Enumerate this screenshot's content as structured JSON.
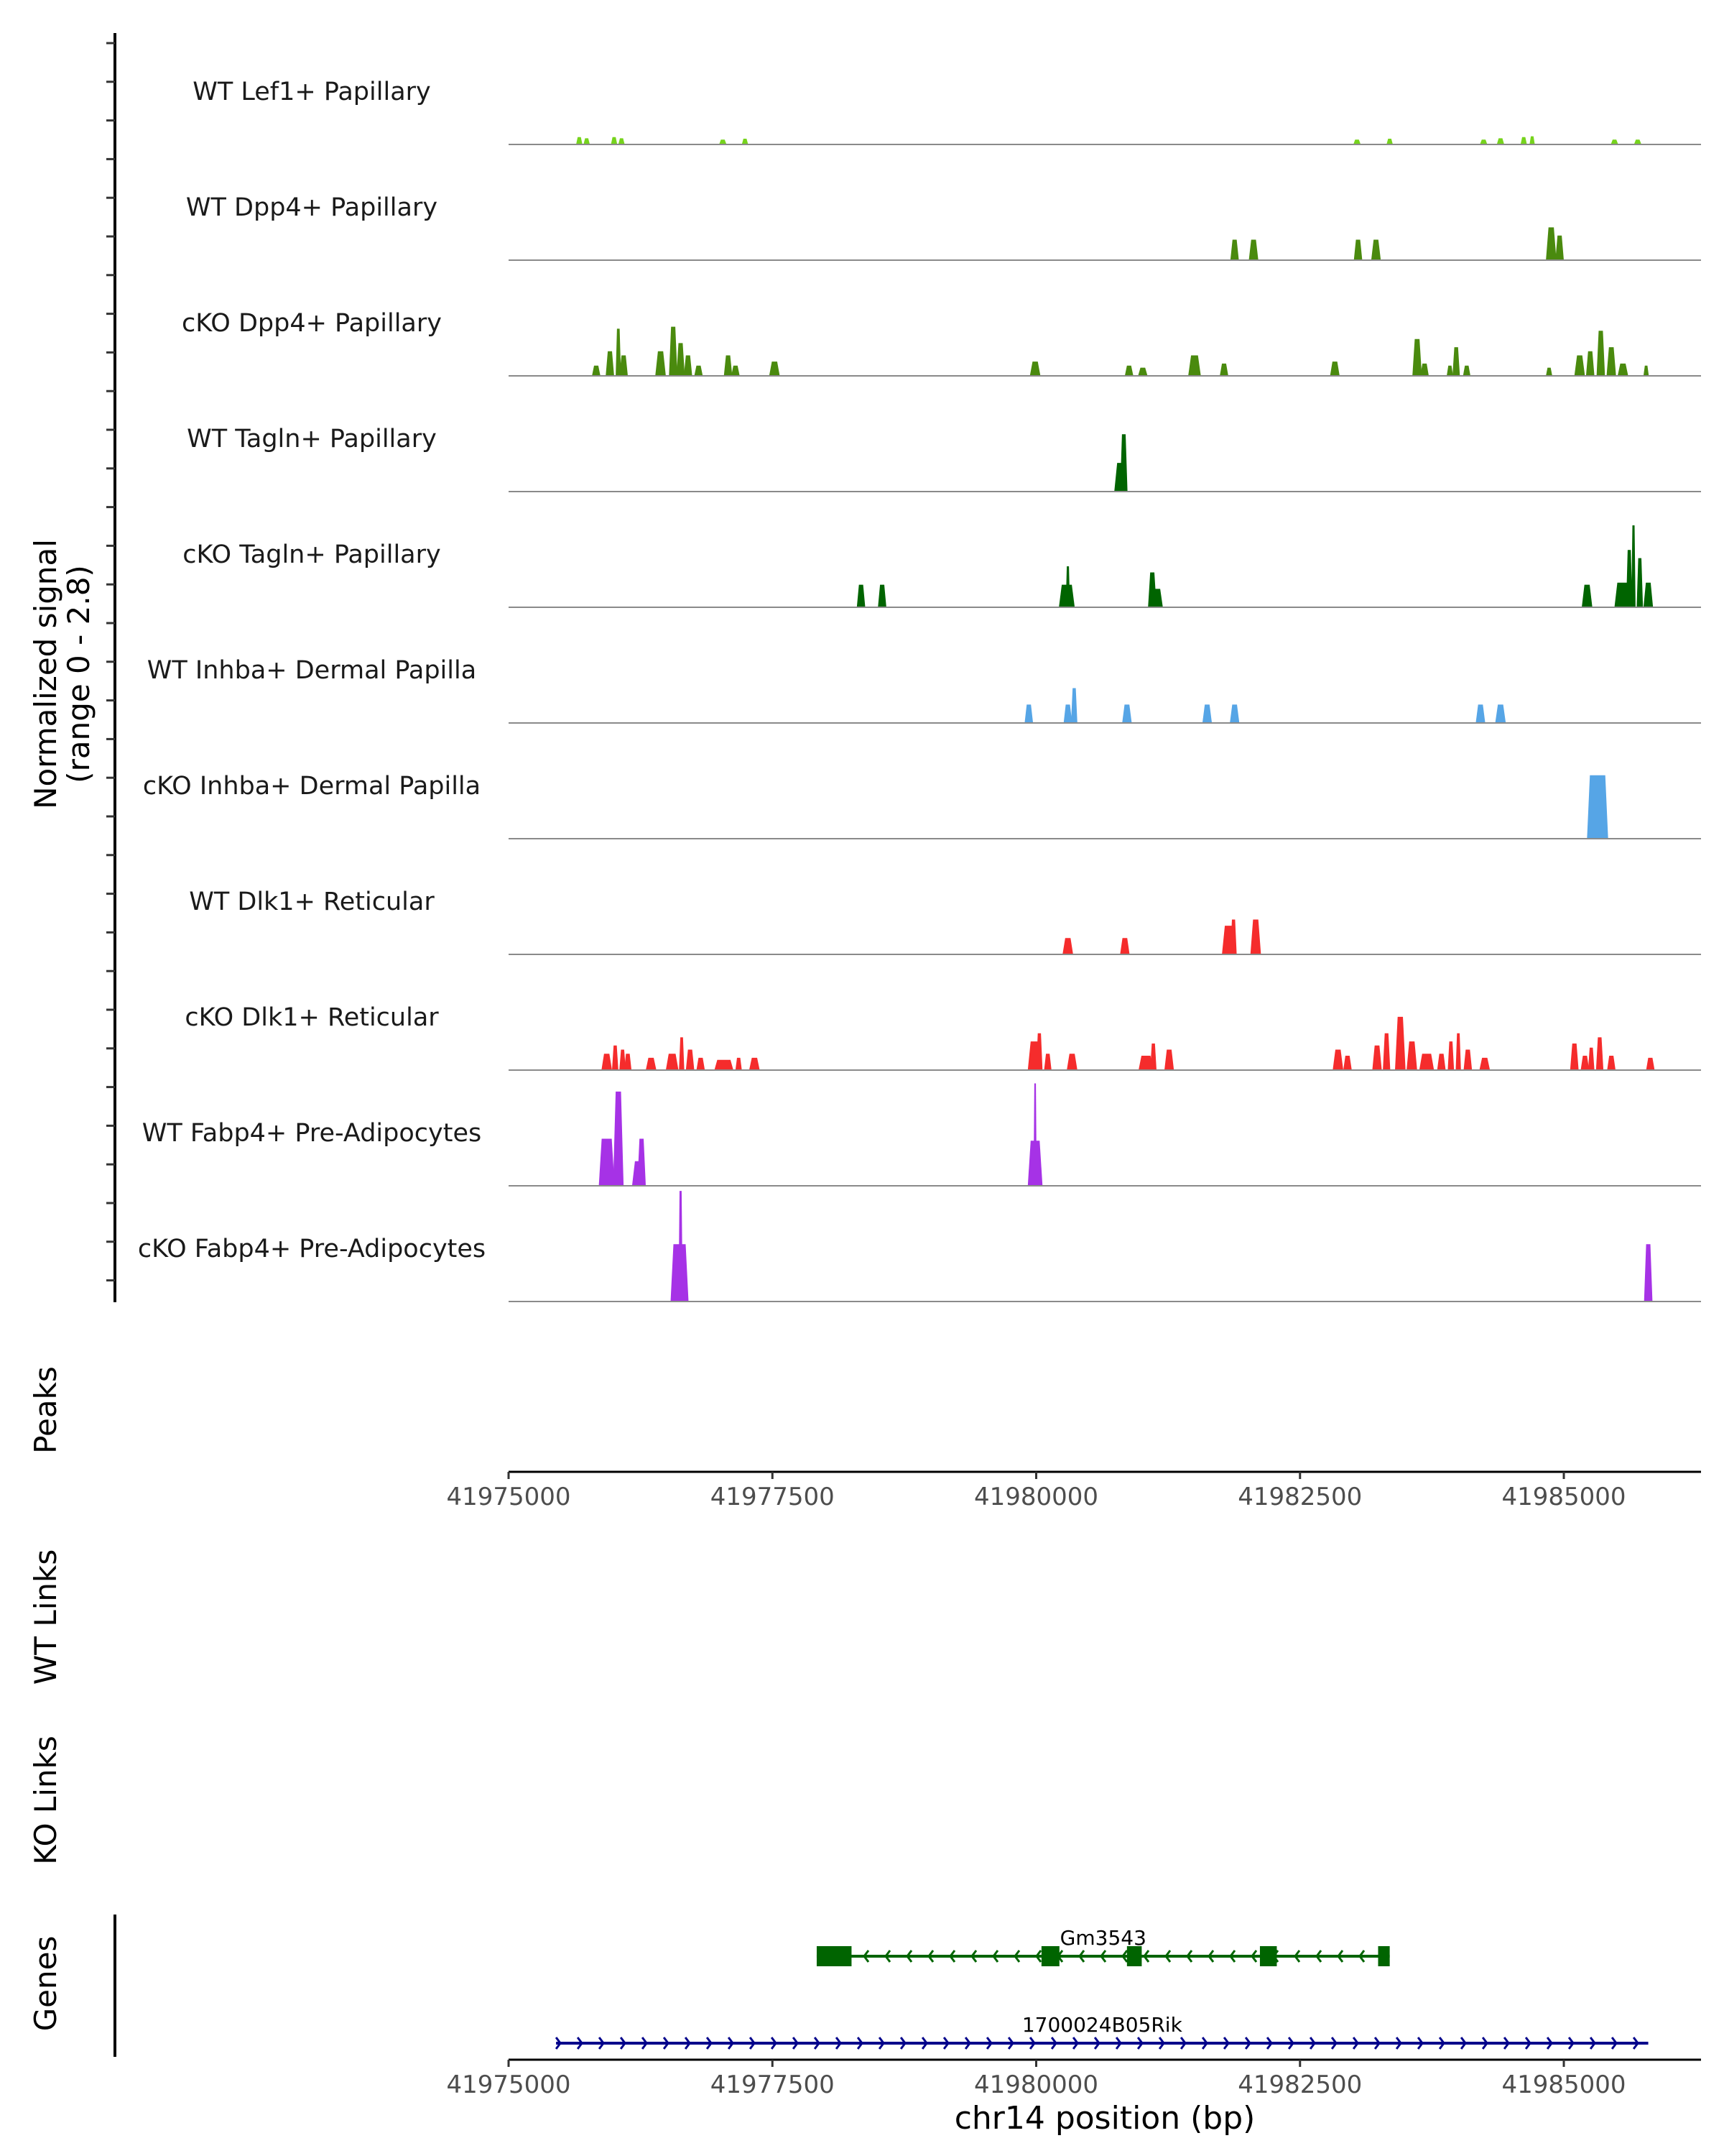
{
  "chart_data": {
    "type": "area",
    "chromosome": "chr14",
    "xlim": [
      41975000,
      41986300
    ],
    "y_range": [
      0,
      2.8
    ],
    "y_label_line1": "Normalized signal",
    "y_label_line2": "(range 0 - 2.8)",
    "x_ticks": [
      41975000,
      41977500,
      41980000,
      41982500,
      41985000
    ],
    "tick_labels": [
      "41975000",
      "41977500",
      "41980000",
      "41982500",
      "41985000"
    ],
    "x_label": "chr14 position (bp)",
    "panel_labels": {
      "peaks": "Peaks",
      "wt_links": "WT Links",
      "ko_links": "KO Links",
      "genes": "Genes"
    },
    "tracks": [
      {
        "label": "WT Lef1+ Papillary",
        "color": "#76D31C",
        "peaks": [
          [
            41975670,
            0.18,
            60
          ],
          [
            41975740,
            0.15,
            60
          ],
          [
            41976000,
            0.18,
            60
          ],
          [
            41976070,
            0.15,
            60
          ],
          [
            41977030,
            0.12,
            70
          ],
          [
            41977240,
            0.14,
            60
          ],
          [
            41983040,
            0.12,
            70
          ],
          [
            41983350,
            0.14,
            60
          ],
          [
            41984240,
            0.12,
            70
          ],
          [
            41984400,
            0.15,
            70
          ],
          [
            41984620,
            0.18,
            60
          ],
          [
            41984700,
            0.2,
            50
          ],
          [
            41985480,
            0.12,
            70
          ],
          [
            41985700,
            0.12,
            70
          ]
        ]
      },
      {
        "label": "WT Dpp4+ Papillary",
        "color": "#4A8A0E",
        "peaks": [
          [
            41981880,
            0.5,
            80
          ],
          [
            41982060,
            0.5,
            90
          ],
          [
            41983050,
            0.5,
            80
          ],
          [
            41983220,
            0.5,
            90
          ],
          [
            41984880,
            0.8,
            100
          ],
          [
            41984960,
            0.6,
            80
          ]
        ]
      },
      {
        "label": "cKO Dpp4+ Papillary",
        "color": "#4A8A0E",
        "peaks": [
          [
            41975830,
            0.25,
            80
          ],
          [
            41975960,
            0.6,
            80
          ],
          [
            41976040,
            1.15,
            50
          ],
          [
            41976090,
            0.5,
            80
          ],
          [
            41976440,
            0.6,
            100
          ],
          [
            41976560,
            1.2,
            80
          ],
          [
            41976630,
            0.8,
            80
          ],
          [
            41976700,
            0.5,
            80
          ],
          [
            41976800,
            0.25,
            80
          ],
          [
            41977080,
            0.5,
            80
          ],
          [
            41977150,
            0.25,
            80
          ],
          [
            41977520,
            0.35,
            100
          ],
          [
            41979990,
            0.35,
            100
          ],
          [
            41980880,
            0.25,
            80
          ],
          [
            41981010,
            0.2,
            90
          ],
          [
            41981500,
            0.5,
            120
          ],
          [
            41981780,
            0.3,
            80
          ],
          [
            41982830,
            0.35,
            90
          ],
          [
            41983610,
            0.9,
            90
          ],
          [
            41983680,
            0.3,
            80
          ],
          [
            41983920,
            0.25,
            60
          ],
          [
            41983980,
            0.7,
            70
          ],
          [
            41984080,
            0.25,
            70
          ],
          [
            41984860,
            0.2,
            60
          ],
          [
            41985150,
            0.5,
            100
          ],
          [
            41985250,
            0.6,
            80
          ],
          [
            41985350,
            1.1,
            80
          ],
          [
            41985450,
            0.7,
            90
          ],
          [
            41985560,
            0.3,
            100
          ],
          [
            41985780,
            0.25,
            50
          ]
        ]
      },
      {
        "label": "WT Tagln+ Papillary",
        "color": "#006400",
        "peaks": [
          [
            41980830,
            1.4,
            70
          ],
          [
            41980800,
            0.7,
            120
          ]
        ]
      },
      {
        "label": "cKO Tagln+ Papillary",
        "color": "#006400",
        "peaks": [
          [
            41978340,
            0.55,
            80
          ],
          [
            41978540,
            0.55,
            80
          ],
          [
            41980290,
            0.55,
            150
          ],
          [
            41980300,
            1.0,
            40
          ],
          [
            41981100,
            0.85,
            80
          ],
          [
            41981150,
            0.45,
            100
          ],
          [
            41985220,
            0.55,
            100
          ],
          [
            41985570,
            0.6,
            180
          ],
          [
            41985620,
            1.4,
            60
          ],
          [
            41985660,
            2.0,
            40
          ],
          [
            41985720,
            1.2,
            60
          ],
          [
            41985800,
            0.6,
            90
          ]
        ]
      },
      {
        "label": "WT Inhba+ Dermal Papilla",
        "color": "#56A5E6",
        "peaks": [
          [
            41979930,
            0.45,
            80
          ],
          [
            41980300,
            0.45,
            80
          ],
          [
            41980360,
            0.85,
            60
          ],
          [
            41980860,
            0.45,
            90
          ],
          [
            41981620,
            0.45,
            90
          ],
          [
            41981880,
            0.45,
            90
          ],
          [
            41984210,
            0.45,
            90
          ],
          [
            41984400,
            0.45,
            100
          ]
        ]
      },
      {
        "label": "cKO Inhba+ Dermal Papilla",
        "color": "#56A5E6",
        "peaks": [
          [
            41985320,
            1.55,
            200
          ]
        ]
      },
      {
        "label": "WT Dlk1+ Reticular",
        "color": "#F52C2C",
        "peaks": [
          [
            41980300,
            0.4,
            100
          ],
          [
            41980840,
            0.4,
            90
          ],
          [
            41981820,
            0.7,
            120
          ],
          [
            41981870,
            0.85,
            60
          ],
          [
            41982080,
            0.85,
            100
          ]
        ]
      },
      {
        "label": "cKO Dlk1+ Reticular",
        "color": "#F52C2C",
        "peaks": [
          [
            41975930,
            0.4,
            100
          ],
          [
            41976010,
            0.6,
            60
          ],
          [
            41976080,
            0.5,
            60
          ],
          [
            41976130,
            0.4,
            70
          ],
          [
            41976350,
            0.3,
            100
          ],
          [
            41976550,
            0.4,
            120
          ],
          [
            41976640,
            0.8,
            50
          ],
          [
            41976720,
            0.5,
            80
          ],
          [
            41976820,
            0.3,
            80
          ],
          [
            41977040,
            0.25,
            180
          ],
          [
            41977180,
            0.3,
            60
          ],
          [
            41977330,
            0.3,
            100
          ],
          [
            41979980,
            0.7,
            120
          ],
          [
            41980030,
            0.9,
            60
          ],
          [
            41980110,
            0.4,
            70
          ],
          [
            41980340,
            0.4,
            100
          ],
          [
            41981040,
            0.35,
            140
          ],
          [
            41981110,
            0.65,
            60
          ],
          [
            41981260,
            0.5,
            90
          ],
          [
            41982860,
            0.5,
            100
          ],
          [
            41982950,
            0.35,
            80
          ],
          [
            41983230,
            0.6,
            90
          ],
          [
            41983320,
            0.9,
            70
          ],
          [
            41983450,
            1.3,
            100
          ],
          [
            41983560,
            0.7,
            100
          ],
          [
            41983700,
            0.4,
            140
          ],
          [
            41983840,
            0.4,
            80
          ],
          [
            41983930,
            0.7,
            60
          ],
          [
            41984000,
            0.9,
            50
          ],
          [
            41984090,
            0.5,
            80
          ],
          [
            41984250,
            0.3,
            100
          ],
          [
            41985100,
            0.65,
            80
          ],
          [
            41985200,
            0.35,
            80
          ],
          [
            41985260,
            0.55,
            60
          ],
          [
            41985340,
            0.8,
            70
          ],
          [
            41985450,
            0.35,
            80
          ],
          [
            41985820,
            0.3,
            80
          ]
        ]
      },
      {
        "label": "WT Fabp4+ Pre-Adipocytes",
        "color": "#A632E6",
        "peaks": [
          [
            41975930,
            1.15,
            150
          ],
          [
            41976040,
            2.3,
            100
          ],
          [
            41976260,
            1.15,
            80
          ],
          [
            41976230,
            0.6,
            120
          ],
          [
            41979990,
            1.1,
            140
          ],
          [
            41979990,
            2.5,
            30
          ]
        ]
      },
      {
        "label": "cKO Fabp4+ Pre-Adipocytes",
        "color": "#A632E6",
        "peaks": [
          [
            41976620,
            1.4,
            170
          ],
          [
            41976630,
            2.7,
            40
          ],
          [
            41985800,
            1.4,
            80
          ]
        ]
      }
    ],
    "genes": [
      {
        "name": "Gm3543",
        "color": "#006400",
        "strand": "-",
        "start": 41977920,
        "end": 41983350,
        "exons": [
          [
            41977920,
            41978250
          ],
          [
            41980050,
            41980220
          ],
          [
            41980860,
            41981000
          ],
          [
            41982120,
            41982280
          ],
          [
            41983240,
            41983350
          ]
        ]
      },
      {
        "name": "1700024B05Rik",
        "color": "#00008B",
        "strand": "+",
        "start": 41975450,
        "end": 41985800,
        "exons": []
      }
    ]
  }
}
